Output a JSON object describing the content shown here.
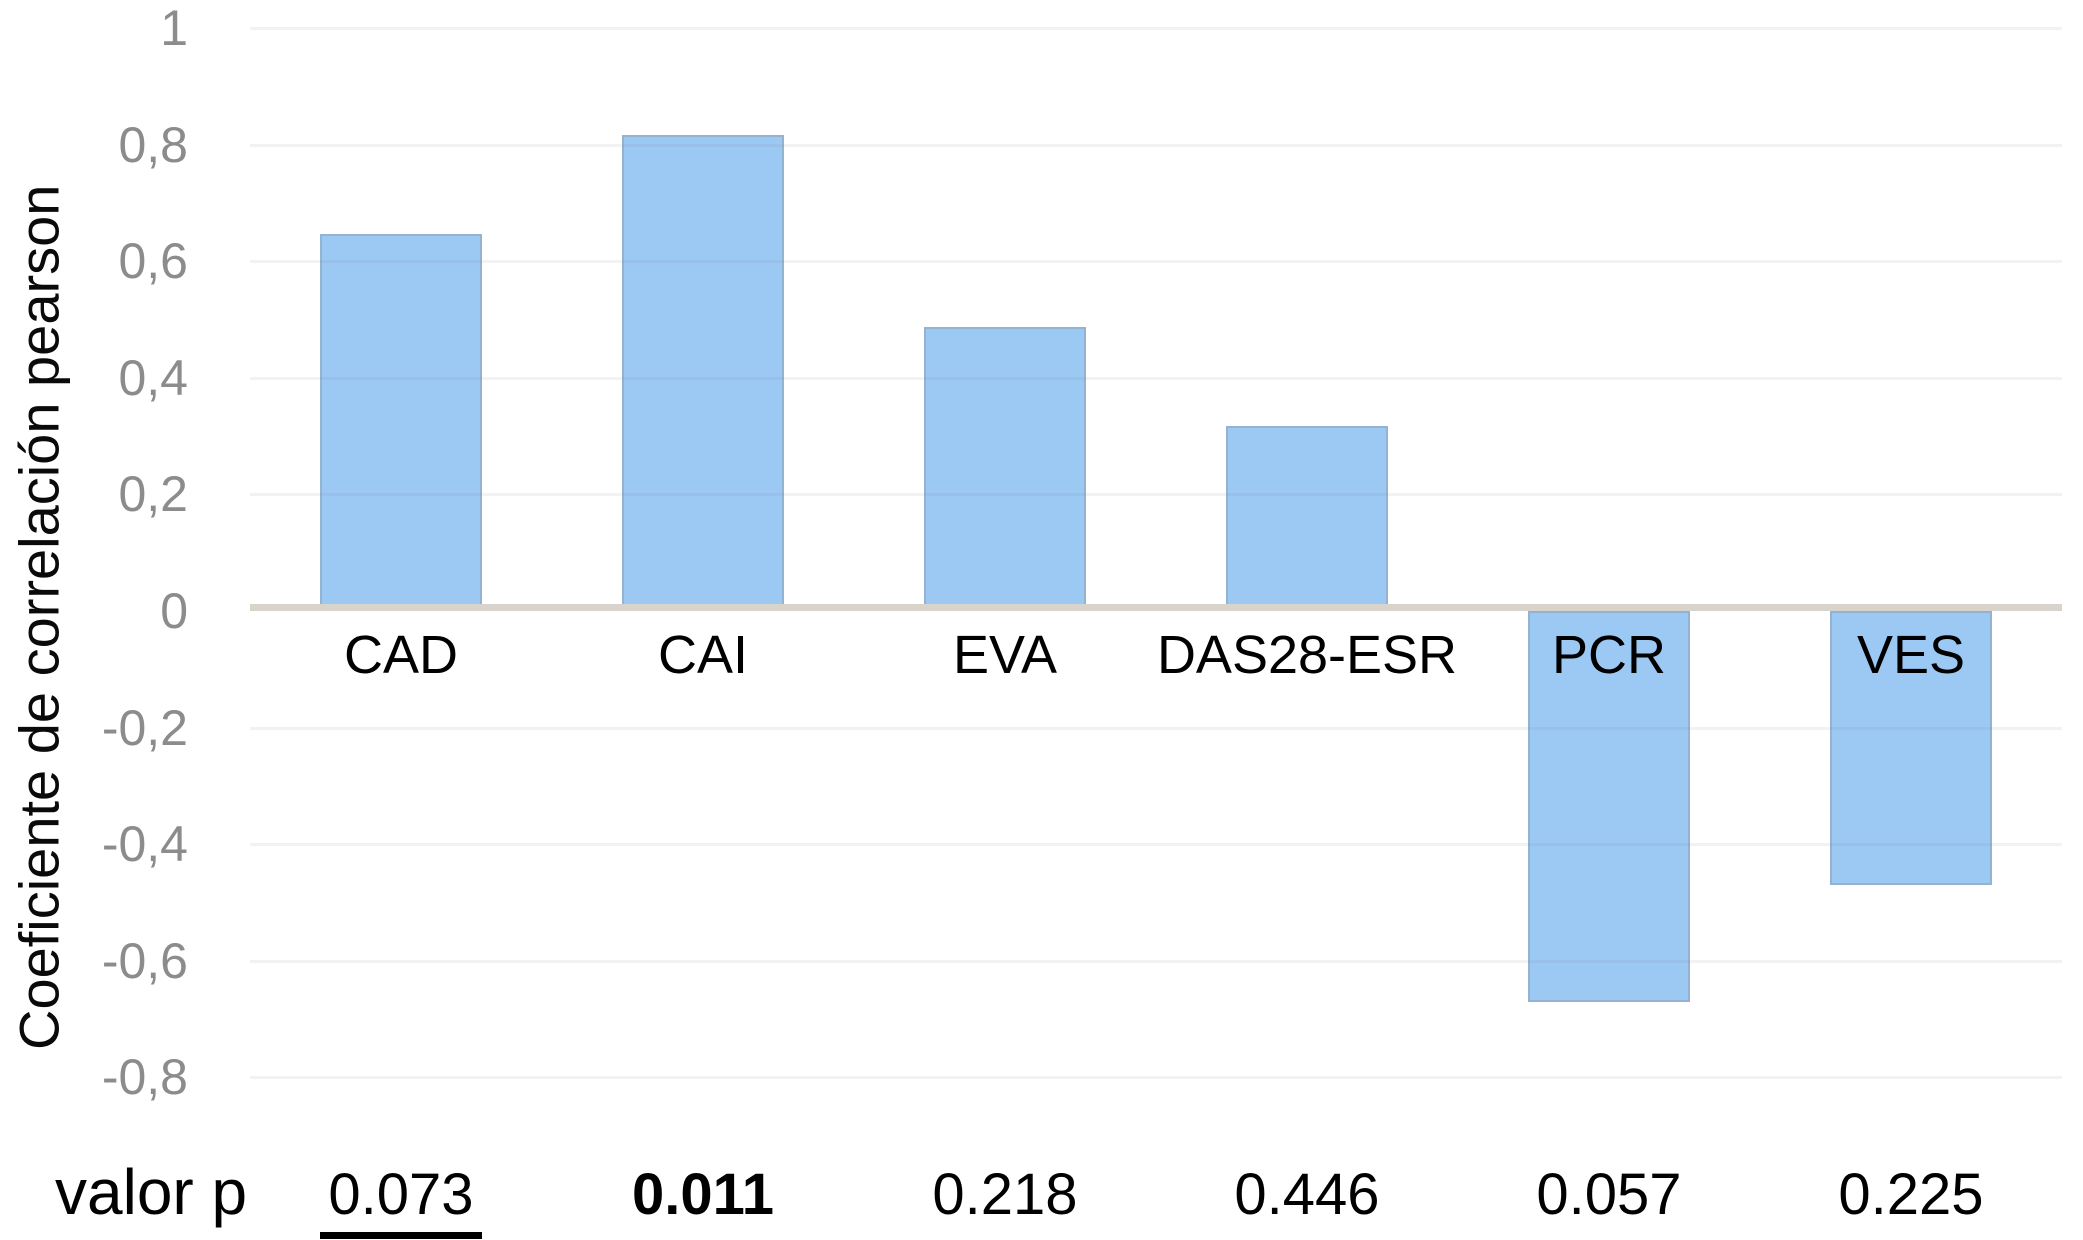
{
  "chart_data": {
    "type": "bar",
    "title": "",
    "ylabel": "Coeficiente de correlación pearson",
    "xlabel": "",
    "categories": [
      "CAD",
      "CAI",
      "EVA",
      "DAS28-ESR",
      "PCR",
      "VES"
    ],
    "values": [
      0.64,
      0.81,
      0.48,
      0.31,
      -0.67,
      -0.47
    ],
    "ylim": [
      -0.8,
      1
    ],
    "ytick_labels": [
      "1",
      "0,8",
      "0,6",
      "0,4",
      "0,2",
      "0",
      "-0,2",
      "-0,4",
      "-0,6",
      "-0,8"
    ],
    "ytick_values": [
      1,
      0.8,
      0.6,
      0.4,
      0.2,
      0,
      -0.2,
      -0.4,
      -0.6,
      -0.8
    ],
    "grid": "faint horizontal lines at 0.2 intervals",
    "legend_position": "none",
    "p_row": {
      "label": "valor p",
      "values": [
        "0.073",
        "0.011",
        "0.218",
        "0.446",
        "0.057",
        "0.225"
      ],
      "styles": [
        "underline",
        "bold",
        "normal",
        "normal",
        "normal",
        "normal"
      ]
    }
  },
  "colors": {
    "bar_fill": "#9CC8F4",
    "bar_edge": "rgba(140,152,164,0.45)",
    "axis_line": "#D8D4CC",
    "tick_text": "#8C8C8C",
    "label_text": "#000000",
    "background": "#FFFFFF"
  }
}
